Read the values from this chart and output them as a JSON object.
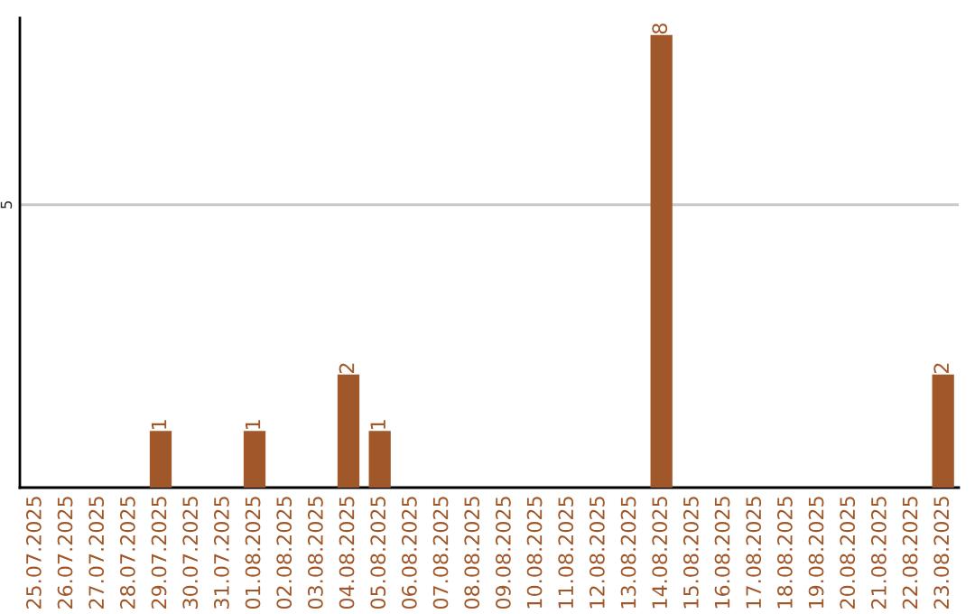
{
  "chart_data": {
    "type": "bar",
    "categories": [
      "25.07.2025",
      "26.07.2025",
      "27.07.2025",
      "28.07.2025",
      "29.07.2025",
      "30.07.2025",
      "31.07.2025",
      "01.08.2025",
      "02.08.2025",
      "03.08.2025",
      "04.08.2025",
      "05.08.2025",
      "06.08.2025",
      "07.08.2025",
      "08.08.2025",
      "09.08.2025",
      "10.08.2025",
      "11.08.2025",
      "12.08.2025",
      "13.08.2025",
      "14.08.2025",
      "15.08.2025",
      "16.08.2025",
      "17.08.2025",
      "18.08.2025",
      "19.08.2025",
      "20.08.2025",
      "21.08.2025",
      "22.08.2025",
      "23.08.2025"
    ],
    "values": [
      0,
      0,
      0,
      0,
      1,
      0,
      0,
      1,
      0,
      0,
      2,
      1,
      0,
      0,
      0,
      0,
      0,
      0,
      0,
      0,
      8,
      0,
      0,
      0,
      0,
      0,
      0,
      0,
      0,
      2
    ],
    "value_labels": [
      null,
      null,
      null,
      null,
      "1",
      null,
      null,
      "1",
      null,
      null,
      "2",
      "1",
      null,
      null,
      null,
      null,
      null,
      null,
      null,
      null,
      "8",
      null,
      null,
      null,
      null,
      null,
      null,
      null,
      null,
      "2"
    ],
    "color": "#a0582a",
    "ylim": [
      0,
      8.3
    ],
    "yticks": [
      5
    ],
    "grid": "y"
  }
}
